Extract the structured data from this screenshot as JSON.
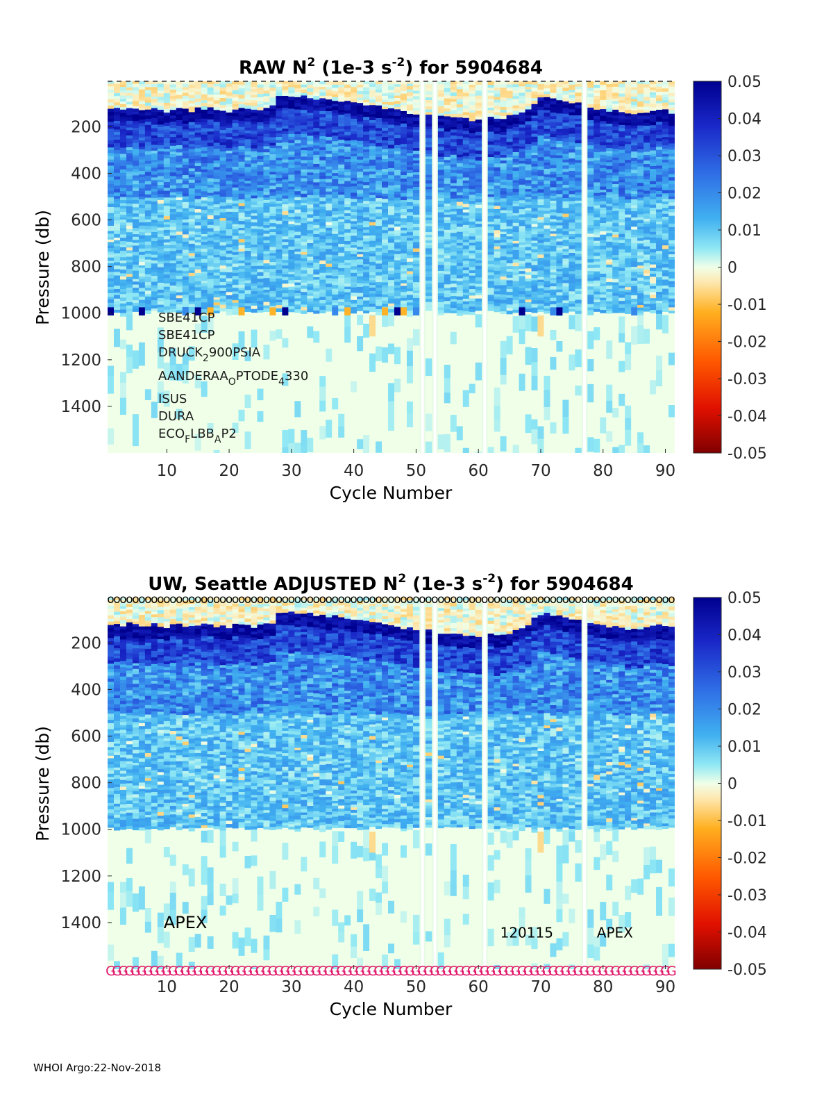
{
  "chart_data": [
    {
      "type": "heatmap",
      "id": "raw",
      "title": "RAW N2 (1e-3 s-2) for 5904684",
      "title_parts": {
        "prefix": "RAW N",
        "sup1": "2",
        "mid": " (1e-3 s",
        "sup2": "-2",
        "suffix": ") for 5904684"
      },
      "xlabel": "Cycle Number",
      "ylabel": "Pressure (db)",
      "xlim": [
        0.5,
        91.5
      ],
      "ylim": [
        1600,
        5
      ],
      "xticks": [
        10,
        20,
        30,
        40,
        50,
        60,
        70,
        80,
        90
      ],
      "yticks": [
        200,
        400,
        600,
        800,
        1000,
        1200,
        1400
      ],
      "colorbar": {
        "min": -0.05,
        "max": 0.05,
        "colormap": "jet-diverging",
        "ticks": [
          "0.05",
          "0.04",
          "0.03",
          "0.02",
          "0.01",
          "0",
          "-0.01",
          "-0.02",
          "-0.03",
          "-0.04",
          "-0.05"
        ]
      },
      "missing_cycles": [
        51,
        53,
        61,
        77
      ],
      "pycnocline_depth": [
        148,
        150,
        155,
        145,
        152,
        160,
        155,
        150,
        158,
        162,
        150,
        148,
        155,
        160,
        152,
        150,
        145,
        155,
        160,
        165,
        150,
        148,
        155,
        160,
        152,
        148,
        140,
        100,
        98,
        100,
        102,
        100,
        105,
        108,
        110,
        112,
        115,
        118,
        120,
        125,
        130,
        135,
        140,
        142,
        150,
        155,
        160,
        165,
        168,
        170,
        172,
        175,
        180,
        185,
        188,
        190,
        192,
        195,
        198,
        200,
        205,
        190,
        200,
        195,
        185,
        175,
        165,
        150,
        125,
        105,
        100,
        110,
        115,
        120,
        125,
        130,
        135,
        140,
        150,
        155,
        158,
        160,
        165,
        168,
        170,
        172,
        165,
        160,
        155,
        160,
        165
      ],
      "deep_bin_pressure": 1000,
      "annotations": [
        {
          "label": "SBE41CP"
        },
        {
          "label": "SBE41CP"
        },
        {
          "base": "DRUCK",
          "sub1": "2",
          "rest": "900PSIA"
        },
        {
          "base": "AANDERAA",
          "sub1": "O",
          "mid": "PTODE",
          "sub2": "4",
          "rest": "330"
        },
        {
          "label": "ISUS"
        },
        {
          "label": "DURA"
        },
        {
          "base": "ECO",
          "sub1": "F",
          "mid": "LBB",
          "sub2": "A",
          "rest": "P2"
        }
      ]
    },
    {
      "type": "heatmap",
      "id": "adjusted",
      "title": "UW, Seattle  ADJUSTED N2 (1e-3 s-2) for 5904684",
      "title_parts": {
        "prefix": "UW, Seattle  ADJUSTED N",
        "sup1": "2",
        "mid": " (1e-3 s",
        "sup2": "-2",
        "suffix": ") for 5904684"
      },
      "xlabel": "Cycle Number",
      "ylabel": "Pressure (db)",
      "xlim": [
        0.5,
        91.5
      ],
      "ylim": [
        1600,
        5
      ],
      "xticks": [
        10,
        20,
        30,
        40,
        50,
        60,
        70,
        80,
        90
      ],
      "yticks": [
        200,
        400,
        600,
        800,
        1000,
        1200,
        1400
      ],
      "colorbar": {
        "min": -0.05,
        "max": 0.05,
        "colormap": "jet-diverging",
        "ticks": [
          "0.05",
          "0.04",
          "0.03",
          "0.02",
          "0.01",
          "0",
          "-0.01",
          "-0.02",
          "-0.03",
          "-0.04",
          "-0.05"
        ]
      },
      "missing_cycles": [
        51,
        53,
        61,
        77
      ],
      "top_marker": "o",
      "bottom_marker": "G",
      "bottom_marker_color": "#e0196b",
      "annotations": [
        {
          "label": "APEX",
          "cycle": 9.5,
          "pressure": 1400
        },
        {
          "label": "120115",
          "cycle": 63.5,
          "pressure": 1440
        },
        {
          "label": "APEX",
          "cycle": 79,
          "pressure": 1440
        }
      ]
    }
  ],
  "footer": {
    "text": "WHOI Argo:22-Nov-2018"
  }
}
